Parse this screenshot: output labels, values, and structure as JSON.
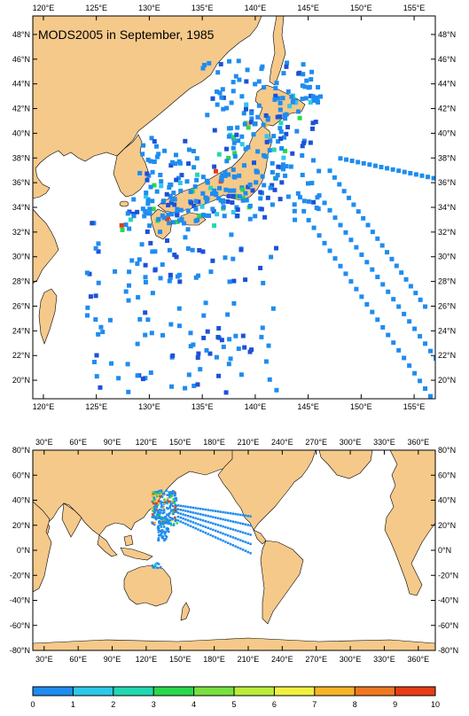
{
  "title": "MODS2005 in September, 1985",
  "colors": {
    "land": "#f5c98a",
    "ocean": "#ffffff",
    "frame": "#000000"
  },
  "top_map": {
    "lon_ticks": [
      "120°E",
      "125°E",
      "130°E",
      "135°E",
      "140°E",
      "145°E",
      "150°E",
      "155°E"
    ],
    "lat_ticks": [
      "20°N",
      "22°N",
      "24°N",
      "26°N",
      "28°N",
      "30°N",
      "32°N",
      "34°N",
      "36°N",
      "38°N",
      "40°N",
      "42°N",
      "44°N",
      "46°N",
      "48°N"
    ],
    "lon_range": [
      119,
      157
    ],
    "lat_range": [
      18.5,
      49.5
    ]
  },
  "bottom_map": {
    "lon_ticks": [
      "30°E",
      "60°E",
      "90°E",
      "120°E",
      "150°E",
      "180°E",
      "210°E",
      "240°E",
      "270°E",
      "300°E",
      "330°E",
      "360°E"
    ],
    "lat_ticks": [
      "80°N",
      "60°N",
      "40°N",
      "20°N",
      "0°N",
      "-20°N",
      "-40°N",
      "-60°N",
      "-80°N"
    ],
    "lon_range": [
      20,
      375
    ],
    "lat_range": [
      -80,
      80
    ]
  },
  "colorbar": {
    "labels": [
      "0",
      "1",
      "2",
      "3",
      "4",
      "5",
      "6",
      "7",
      "8",
      "9",
      "10"
    ],
    "colors": [
      "#1e50d8",
      "#1e8cf0",
      "#2cc8e8",
      "#22d8b0",
      "#2ad84a",
      "#78e040",
      "#bcec3a",
      "#f0f040",
      "#f8b428",
      "#f07820",
      "#e83c14"
    ]
  }
}
